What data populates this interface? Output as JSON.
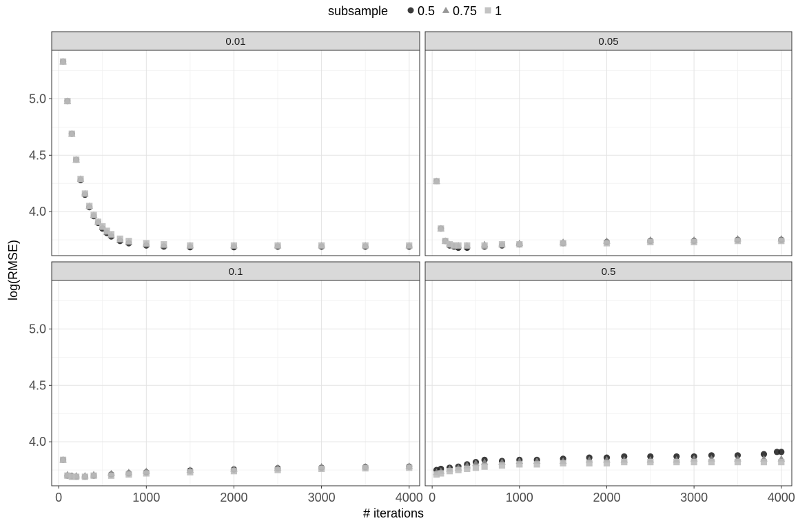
{
  "chart_data": {
    "type": "scatter",
    "title": "",
    "xlabel": "# iterations",
    "ylabel": "log(RMSE)",
    "xlim": [
      -80,
      4120
    ],
    "ylim": [
      3.61,
      5.43
    ],
    "x_ticks": [
      0,
      1000,
      2000,
      3000,
      4000
    ],
    "y_ticks": [
      4.0,
      4.5,
      5.0
    ],
    "grid": true,
    "legend": {
      "title": "subsample",
      "placement": "top",
      "entries": [
        {
          "label": "0.5",
          "shape": "circle",
          "color": "#262626"
        },
        {
          "label": "0.75",
          "shape": "triangle",
          "color": "#8c8c8c"
        },
        {
          "label": "1",
          "shape": "square",
          "color": "#bdbdbd"
        }
      ]
    },
    "facets": [
      {
        "label": "0.01",
        "series": [
          {
            "name": "0.5",
            "x": [
              50,
              100,
              150,
              200,
              250,
              300,
              350,
              400,
              450,
              500,
              550,
              600,
              700,
              800,
              1000,
              1200,
              1500,
              2000,
              2500,
              3000,
              3500,
              4000
            ],
            "y": [
              5.33,
              4.98,
              4.69,
              4.46,
              4.28,
              4.15,
              4.04,
              3.96,
              3.9,
              3.85,
              3.81,
              3.78,
              3.74,
              3.72,
              3.7,
              3.69,
              3.685,
              3.685,
              3.69,
              3.69,
              3.69,
              3.69
            ]
          },
          {
            "name": "0.75",
            "x": [
              50,
              100,
              150,
              200,
              250,
              300,
              350,
              400,
              450,
              500,
              550,
              600,
              700,
              800,
              1000,
              1200,
              1500,
              2000,
              2500,
              3000,
              3500,
              4000
            ],
            "y": [
              5.33,
              4.98,
              4.69,
              4.46,
              4.29,
              4.16,
              4.05,
              3.97,
              3.91,
              3.86,
              3.82,
              3.79,
              3.75,
              3.73,
              3.71,
              3.7,
              3.7,
              3.7,
              3.7,
              3.7,
              3.7,
              3.7
            ]
          },
          {
            "name": "1",
            "x": [
              50,
              100,
              150,
              200,
              250,
              300,
              350,
              400,
              450,
              500,
              550,
              600,
              700,
              800,
              1000,
              1200,
              1500,
              2000,
              2500,
              3000,
              3500,
              4000
            ],
            "y": [
              5.33,
              4.98,
              4.69,
              4.46,
              4.29,
              4.16,
              4.05,
              3.97,
              3.91,
              3.87,
              3.83,
              3.8,
              3.76,
              3.74,
              3.72,
              3.71,
              3.7,
              3.7,
              3.7,
              3.7,
              3.7,
              3.7
            ]
          }
        ]
      },
      {
        "label": "0.05",
        "series": [
          {
            "name": "0.5",
            "x": [
              50,
              100,
              150,
              200,
              250,
              300,
              400,
              600,
              800,
              1000,
              1500,
              2000,
              2500,
              3000,
              3500,
              4000
            ],
            "y": [
              4.27,
              3.85,
              3.74,
              3.7,
              3.69,
              3.68,
              3.68,
              3.69,
              3.7,
              3.71,
              3.72,
              3.73,
              3.74,
              3.74,
              3.75,
              3.75
            ]
          },
          {
            "name": "0.75",
            "x": [
              50,
              100,
              150,
              200,
              250,
              300,
              400,
              600,
              800,
              1000,
              1500,
              2000,
              2500,
              3000,
              3500,
              4000
            ],
            "y": [
              4.27,
              3.85,
              3.74,
              3.71,
              3.7,
              3.7,
              3.7,
              3.71,
              3.71,
              3.72,
              3.73,
              3.74,
              3.75,
              3.75,
              3.76,
              3.76
            ]
          },
          {
            "name": "1",
            "x": [
              50,
              100,
              150,
              200,
              250,
              300,
              400,
              600,
              800,
              1000,
              1500,
              2000,
              2500,
              3000,
              3500,
              4000
            ],
            "y": [
              4.27,
              3.85,
              3.74,
              3.71,
              3.7,
              3.7,
              3.7,
              3.7,
              3.71,
              3.71,
              3.72,
              3.72,
              3.73,
              3.73,
              3.74,
              3.74
            ]
          }
        ]
      },
      {
        "label": "0.1",
        "series": [
          {
            "name": "0.5",
            "x": [
              50,
              100,
              150,
              200,
              300,
              400,
              600,
              800,
              1000,
              1500,
              2000,
              2500,
              3000,
              3500,
              4000
            ],
            "y": [
              3.84,
              3.7,
              3.695,
              3.69,
              3.69,
              3.7,
              3.71,
              3.72,
              3.73,
              3.745,
              3.755,
              3.765,
              3.77,
              3.775,
              3.78
            ]
          },
          {
            "name": "0.75",
            "x": [
              50,
              100,
              150,
              200,
              300,
              400,
              600,
              800,
              1000,
              1500,
              2000,
              2500,
              3000,
              3500,
              4000
            ],
            "y": [
              3.84,
              3.71,
              3.7,
              3.7,
              3.7,
              3.71,
              3.72,
              3.73,
              3.74,
              3.75,
              3.76,
              3.77,
              3.78,
              3.78,
              3.785
            ]
          },
          {
            "name": "1",
            "x": [
              50,
              100,
              150,
              200,
              300,
              400,
              600,
              800,
              1000,
              1500,
              2000,
              2500,
              3000,
              3500,
              4000
            ],
            "y": [
              3.84,
              3.7,
              3.69,
              3.69,
              3.69,
              3.7,
              3.7,
              3.71,
              3.72,
              3.73,
              3.74,
              3.75,
              3.76,
              3.765,
              3.77
            ]
          }
        ]
      },
      {
        "label": "0.5",
        "series": [
          {
            "name": "0.5",
            "x": [
              50,
              100,
              200,
              300,
              400,
              500,
              600,
              800,
              1000,
              1200,
              1500,
              1800,
              2000,
              2200,
              2500,
              2800,
              3000,
              3200,
              3500,
              3800,
              3950,
              4000
            ],
            "y": [
              3.75,
              3.76,
              3.77,
              3.78,
              3.8,
              3.82,
              3.84,
              3.83,
              3.84,
              3.84,
              3.85,
              3.86,
              3.86,
              3.87,
              3.87,
              3.87,
              3.87,
              3.88,
              3.88,
              3.89,
              3.91,
              3.91
            ]
          },
          {
            "name": "0.75",
            "x": [
              50,
              100,
              200,
              300,
              400,
              500,
              600,
              800,
              1000,
              1200,
              1500,
              1800,
              2000,
              2200,
              2500,
              2800,
              3000,
              3200,
              3500,
              3800,
              4000
            ],
            "y": [
              3.73,
              3.74,
              3.76,
              3.77,
              3.79,
              3.81,
              3.82,
              3.82,
              3.83,
              3.83,
              3.83,
              3.84,
              3.84,
              3.84,
              3.84,
              3.84,
              3.85,
              3.85,
              3.85,
              3.85,
              3.85
            ]
          },
          {
            "name": "1",
            "x": [
              50,
              100,
              200,
              300,
              400,
              500,
              600,
              800,
              1000,
              1200,
              1500,
              1800,
              2000,
              2200,
              2500,
              2800,
              3000,
              3200,
              3500,
              3800,
              4000
            ],
            "y": [
              3.71,
              3.72,
              3.74,
              3.75,
              3.76,
              3.77,
              3.78,
              3.79,
              3.8,
              3.8,
              3.81,
              3.81,
              3.81,
              3.82,
              3.82,
              3.82,
              3.82,
              3.82,
              3.82,
              3.82,
              3.82
            ]
          }
        ]
      }
    ]
  }
}
